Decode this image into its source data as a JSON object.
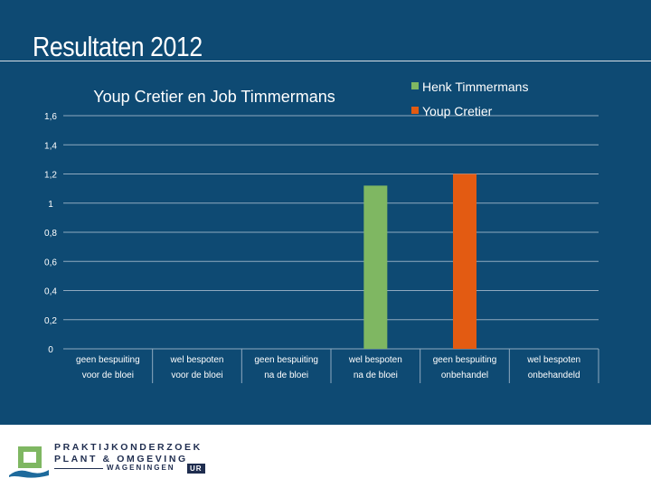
{
  "slide": {
    "title": "Resultaten 2012"
  },
  "chart_data": {
    "type": "bar",
    "title": "Youp Cretier en Job Timmermans",
    "categories": [
      [
        "geen bespuiting",
        "voor de bloei"
      ],
      [
        "wel bespoten",
        "voor de bloei"
      ],
      [
        "geen bespuiting",
        "na de bloei"
      ],
      [
        "wel bespoten",
        "na de bloei"
      ],
      [
        "geen bespuiting",
        "onbehandel"
      ],
      [
        "wel bespoten",
        "onbehandeld"
      ]
    ],
    "series": [
      {
        "name": "Henk Timmermans",
        "color": "#7fb762",
        "values": [
          0,
          0,
          0,
          1.12,
          0,
          0
        ]
      },
      {
        "name": "Youp Cretier",
        "color": "#e35b12",
        "values": [
          0,
          0,
          0,
          0,
          1.2,
          0
        ]
      }
    ],
    "y_ticks": [
      "0",
      "0,2",
      "0,4",
      "0,6",
      "0,8",
      "1",
      "1,2",
      "1,4",
      "1,6"
    ],
    "ylim": [
      0,
      1.6
    ],
    "grid": true,
    "legend_position": "top-right"
  },
  "logo": {
    "line1": "PRAKTIJKONDERZOEK",
    "line2": "PLANT & OMGEVING",
    "line3": "WAGENINGEN",
    "badge": "UR"
  }
}
